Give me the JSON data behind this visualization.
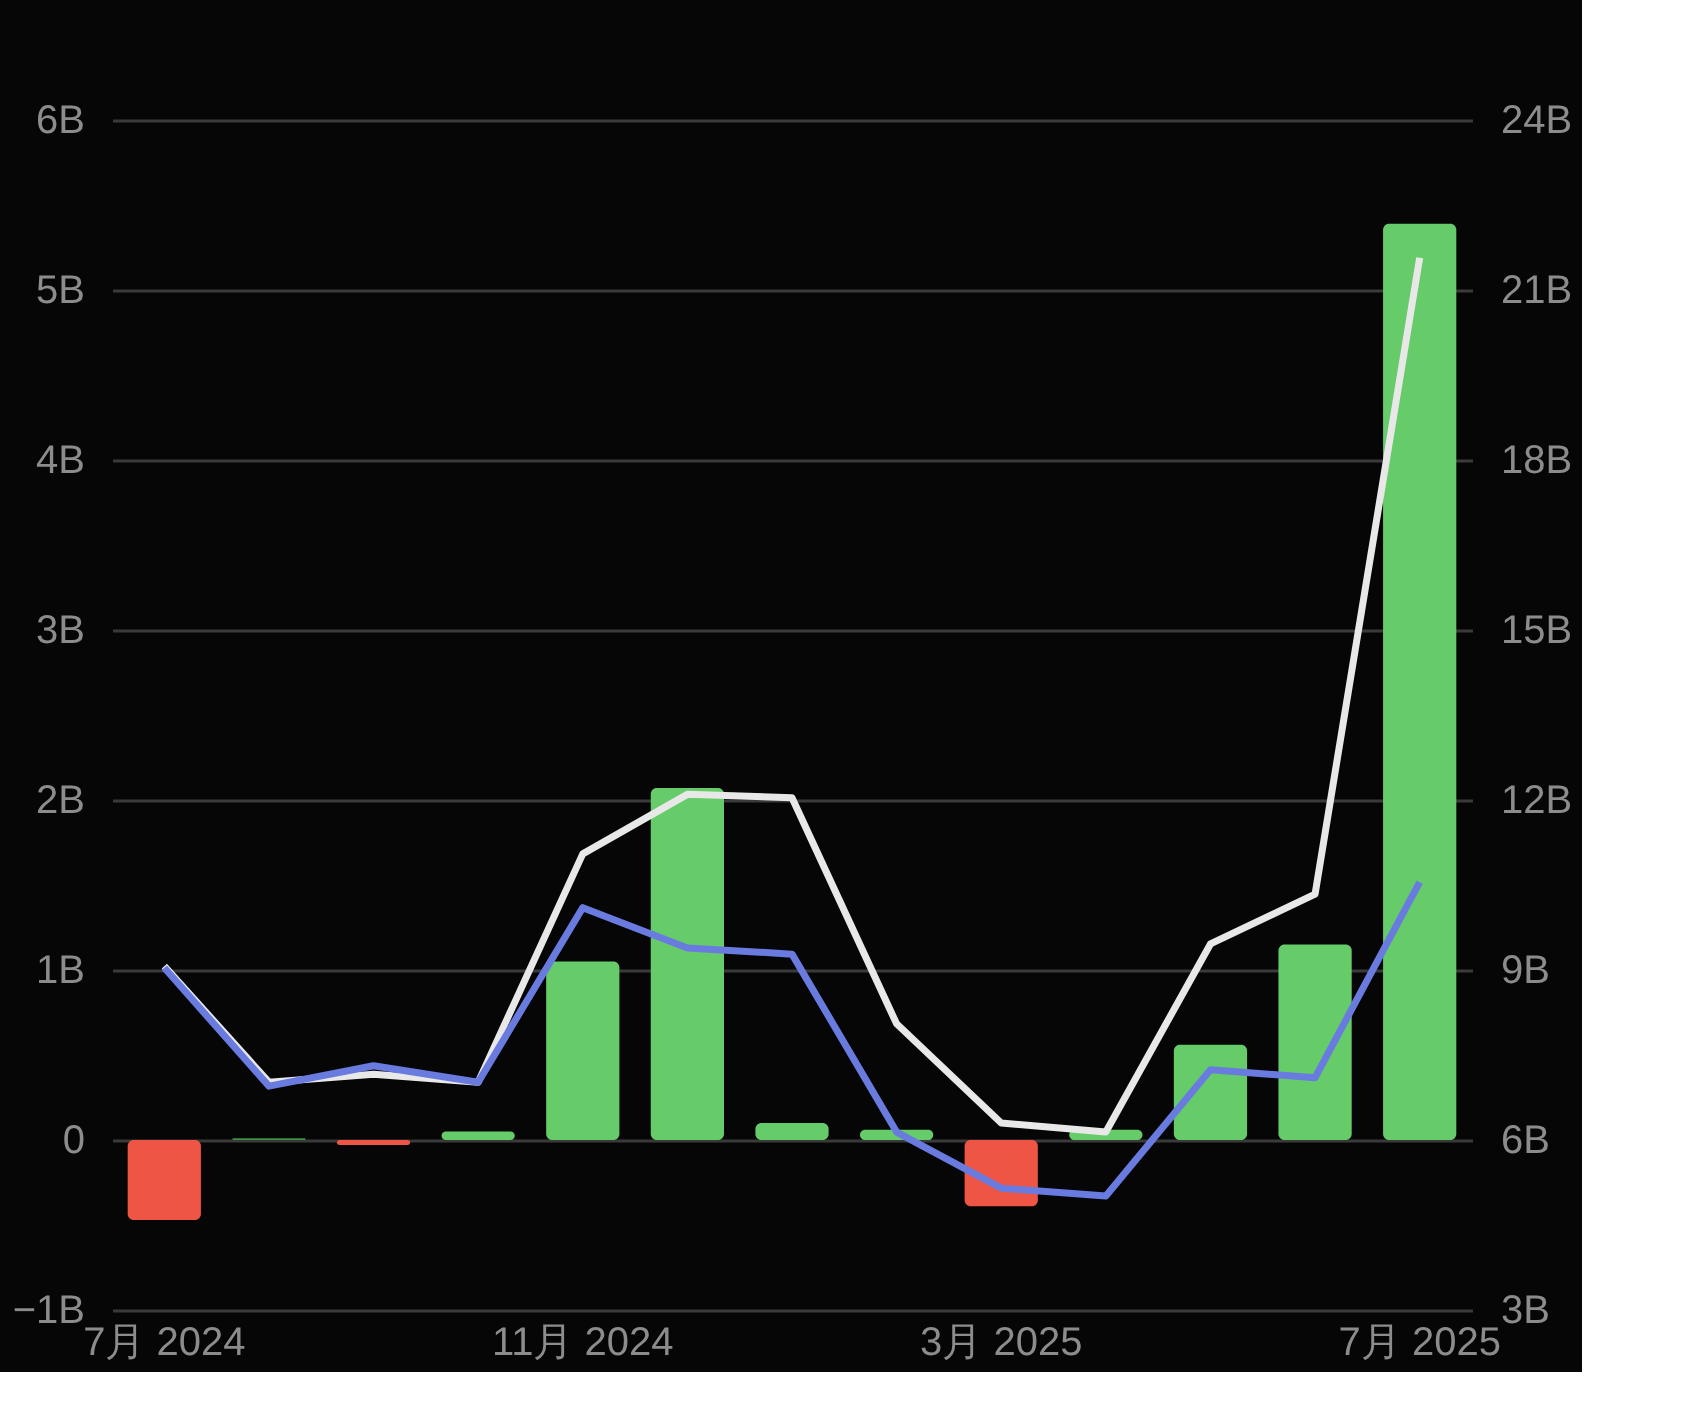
{
  "chart_data": {
    "type": "bar",
    "categories": [
      "7月 2024",
      null,
      null,
      null,
      "11月 2024",
      null,
      null,
      null,
      "3月 2025",
      null,
      null,
      null,
      "7月 2025"
    ],
    "series": [
      {
        "axis": "y",
        "colors": [
          "#ee5545",
          "#3f8f45",
          "#ee5545",
          "#66cc6a",
          "#66cc6a",
          "#66cc6a",
          "#66cc6a",
          "#66cc6a",
          "#ee5545",
          "#66cc6a",
          "#66cc6a",
          "#66cc6a",
          "#66cc6a"
        ],
        "values": [
          -0.47,
          0.01,
          -0.03,
          0.05,
          1.05,
          2.07,
          0.1,
          0.06,
          -0.39,
          0.06,
          0.56,
          1.15,
          5.39
        ]
      },
      {
        "type": "line",
        "axis": "y2",
        "color": "#e8e8e8",
        "values": [
          9.07,
          7.02,
          7.16,
          7.02,
          11.05,
          12.1,
          12.04,
          8.05,
          6.3,
          6.14,
          9.46,
          10.34,
          21.57
        ]
      },
      {
        "type": "line",
        "axis": "y2",
        "color": "#6a7be0",
        "values": [
          9.04,
          6.95,
          7.31,
          7.02,
          10.1,
          9.39,
          9.28,
          6.14,
          5.15,
          5.01,
          7.24,
          7.1,
          10.55
        ]
      }
    ],
    "ylim": [
      -1,
      6
    ],
    "yticks": [
      {
        "value": -1,
        "label": "−1B"
      },
      {
        "value": 0,
        "label": "0"
      },
      {
        "value": 1,
        "label": "1B"
      },
      {
        "value": 2,
        "label": "2B"
      },
      {
        "value": 3,
        "label": "3B"
      },
      {
        "value": 4,
        "label": "4B"
      },
      {
        "value": 5,
        "label": "5B"
      },
      {
        "value": 6,
        "label": "6B"
      }
    ],
    "y2lim": [
      3,
      24
    ],
    "y2ticks": [
      {
        "value": 3,
        "label": "3B"
      },
      {
        "value": 6,
        "label": "6B"
      },
      {
        "value": 9,
        "label": "9B"
      },
      {
        "value": 12,
        "label": "12B"
      },
      {
        "value": 15,
        "label": "15B"
      },
      {
        "value": 18,
        "label": "18B"
      },
      {
        "value": 21,
        "label": "21B"
      },
      {
        "value": 24,
        "label": "24B"
      }
    ],
    "grid": "y"
  }
}
